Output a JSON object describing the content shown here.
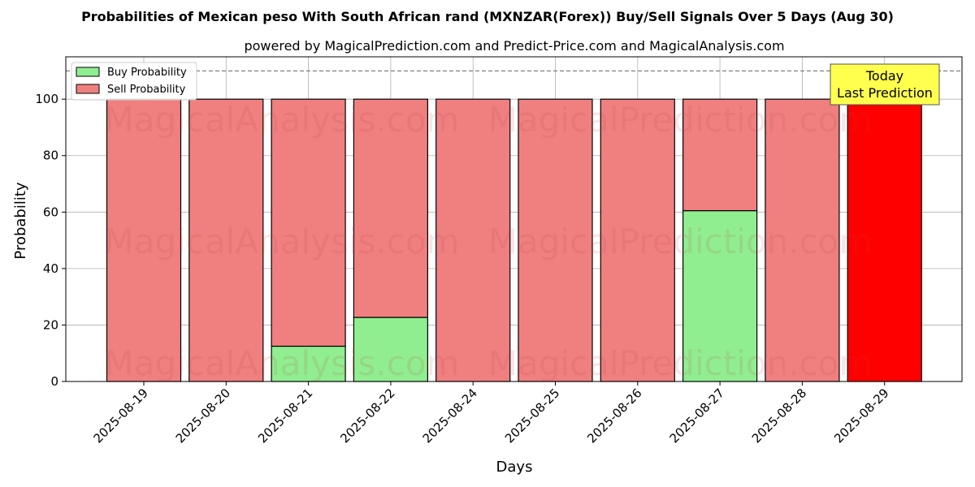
{
  "chart_data": {
    "type": "bar",
    "stacked": true,
    "title": "Probabilities of Mexican peso With South African rand (MXNZAR(Forex)) Buy/Sell Signals Over 5 Days (Aug 30)",
    "subtitle": "powered by MagicalPrediction.com and Predict-Price.com and MagicalAnalysis.com",
    "xlabel": "Days",
    "ylabel": "Probability",
    "ylim": [
      0,
      115
    ],
    "yticks": [
      0,
      20,
      40,
      60,
      80,
      100
    ],
    "grid": true,
    "legend_position": "top-left",
    "reference_line": 110,
    "categories": [
      "2025-08-19",
      "2025-08-20",
      "2025-08-21",
      "2025-08-22",
      "2025-08-24",
      "2025-08-25",
      "2025-08-26",
      "2025-08-27",
      "2025-08-28",
      "2025-08-29"
    ],
    "series": [
      {
        "name": "Buy Probability",
        "color": "#90ee90",
        "values": [
          0,
          0,
          12.5,
          22.7,
          0,
          0,
          0,
          60.5,
          0,
          0
        ]
      },
      {
        "name": "Sell Probability",
        "color": "#f08080",
        "values": [
          100,
          100,
          87.5,
          77.3,
          100,
          100,
          100,
          39.5,
          100,
          100
        ]
      }
    ],
    "highlight": {
      "category": "2025-08-29",
      "color": "#ff0000"
    },
    "annotation": {
      "line1": "Today",
      "line2": "Last Prediction",
      "background": "#ffff4d"
    },
    "watermarks": [
      "MagicalAnalysis.com",
      "MagicalPrediction.com"
    ]
  }
}
